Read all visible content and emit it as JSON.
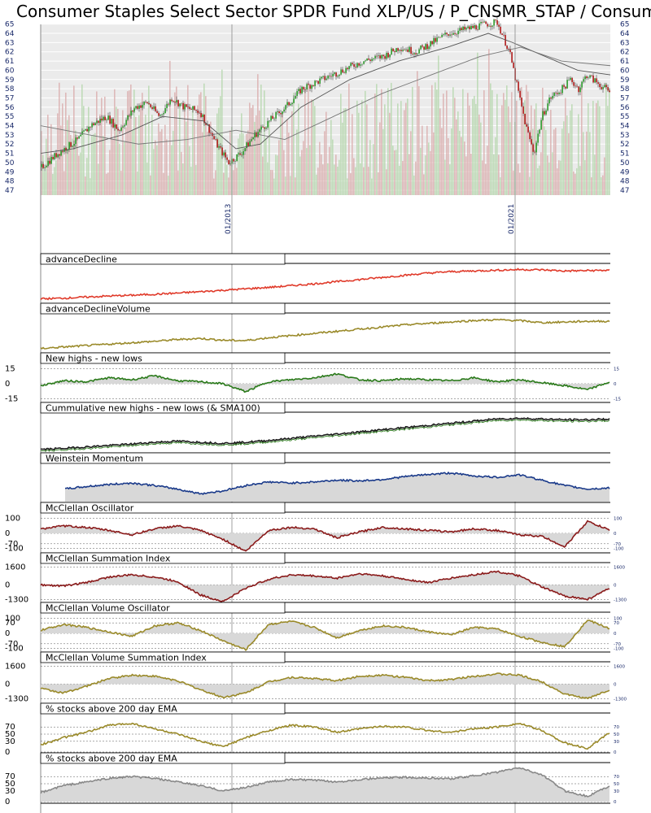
{
  "title": "Consumer Staples Select Sector SPDR Fund XLP/US / P_CNSMR_STAP / Consum",
  "chart_data": [
    {
      "type": "candlestick",
      "title": "Consumer Staples Select Sector SPDR Fund XLP/US / P_CNSMR_STAP / Consum",
      "ylim": [
        47,
        65.5
      ],
      "yticks": [
        47,
        48,
        49,
        50,
        51,
        52,
        53,
        54,
        55,
        56,
        57,
        58,
        59,
        60,
        61,
        62,
        63,
        64,
        65
      ],
      "x_labels": [
        "01/2013",
        "01/2021"
      ],
      "price_path": [
        [
          0,
          49.5
        ],
        [
          20,
          51
        ],
        [
          45,
          52.5
        ],
        [
          60,
          54
        ],
        [
          80,
          55
        ],
        [
          95,
          53.5
        ],
        [
          115,
          56
        ],
        [
          130,
          56.5
        ],
        [
          145,
          55
        ],
        [
          160,
          57
        ],
        [
          175,
          56
        ],
        [
          195,
          55.5
        ],
        [
          215,
          52
        ],
        [
          230,
          50
        ],
        [
          245,
          51
        ],
        [
          262,
          53
        ],
        [
          280,
          54.5
        ],
        [
          300,
          56
        ],
        [
          320,
          58
        ],
        [
          345,
          59
        ],
        [
          370,
          60
        ],
        [
          395,
          61
        ],
        [
          420,
          61.5
        ],
        [
          440,
          62.5
        ],
        [
          460,
          62
        ],
        [
          480,
          63
        ],
        [
          500,
          64
        ],
        [
          525,
          64.5
        ],
        [
          545,
          65
        ],
        [
          560,
          65.2
        ],
        [
          575,
          62
        ],
        [
          585,
          58
        ],
        [
          595,
          54
        ],
        [
          605,
          51
        ],
        [
          615,
          55
        ],
        [
          625,
          57
        ],
        [
          640,
          58
        ],
        [
          650,
          59
        ],
        [
          660,
          58
        ],
        [
          670,
          59.5
        ],
        [
          700,
          57.5
        ]
      ],
      "sma_short": [
        [
          0,
          51
        ],
        [
          40,
          51.5
        ],
        [
          100,
          53
        ],
        [
          150,
          55
        ],
        [
          200,
          54.5
        ],
        [
          240,
          51.5
        ],
        [
          270,
          52
        ],
        [
          320,
          56
        ],
        [
          380,
          59
        ],
        [
          440,
          61
        ],
        [
          500,
          62.5
        ],
        [
          550,
          64
        ],
        [
          580,
          63
        ],
        [
          620,
          61.5
        ],
        [
          660,
          60
        ],
        [
          700,
          59.5
        ]
      ],
      "sma_long": [
        [
          0,
          54
        ],
        [
          60,
          53
        ],
        [
          120,
          52
        ],
        [
          180,
          52.5
        ],
        [
          240,
          53.5
        ],
        [
          300,
          52.5
        ],
        [
          360,
          55
        ],
        [
          420,
          57.5
        ],
        [
          480,
          59.5
        ],
        [
          540,
          61.5
        ],
        [
          590,
          62.5
        ],
        [
          640,
          61
        ],
        [
          700,
          60.5
        ]
      ]
    },
    {
      "type": "line",
      "title": "advanceDecline",
      "color": "#e03a2a",
      "values": [
        10,
        12,
        15,
        18,
        20,
        23,
        26,
        30,
        34,
        38,
        42,
        47,
        52,
        58,
        64,
        70,
        76,
        82,
        86,
        88,
        90,
        92,
        91,
        88,
        89,
        90
      ],
      "ylim": [
        0,
        100
      ]
    },
    {
      "type": "line",
      "title": "advanceDeclineVolume",
      "color": "#9a8a2a",
      "values": [
        10,
        14,
        18,
        22,
        26,
        30,
        35,
        38,
        33,
        32,
        40,
        46,
        52,
        58,
        64,
        70,
        76,
        80,
        84,
        88,
        90,
        88,
        82,
        84,
        86,
        86
      ],
      "ylim": [
        0,
        100
      ]
    },
    {
      "type": "area",
      "title": "New highs - new lows",
      "color": "#2a7a1a",
      "yticks": [
        15,
        0,
        -15
      ],
      "values": [
        -2,
        3,
        2,
        6,
        4,
        8,
        3,
        2,
        0,
        -8,
        2,
        4,
        6,
        10,
        4,
        3,
        5,
        4,
        3,
        6,
        2,
        4,
        1,
        -2,
        -6,
        2
      ],
      "ylim": [
        -18,
        18
      ]
    },
    {
      "type": "line",
      "title": "Cummulative new highs - new lows (& SMA100)",
      "color": "#1a1a1a",
      "values": [
        5,
        8,
        12,
        16,
        20,
        25,
        28,
        25,
        22,
        25,
        30,
        36,
        42,
        48,
        54,
        60,
        66,
        72,
        78,
        84,
        90,
        92,
        90,
        88,
        88,
        90
      ],
      "ylim": [
        0,
        100
      ]
    },
    {
      "type": "area",
      "title": "Weinstein Momentum",
      "color": "#1a3a8a",
      "values": [
        30,
        35,
        42,
        48,
        52,
        45,
        35,
        22,
        30,
        45,
        55,
        52,
        55,
        60,
        58,
        62,
        70,
        76,
        80,
        72,
        68,
        75,
        60,
        45,
        35,
        38
      ],
      "ylim": [
        0,
        100
      ]
    },
    {
      "type": "area",
      "title": "McClellan Oscillator",
      "color": "#8a1a1a",
      "yticks": [
        100,
        0,
        -70,
        -100
      ],
      "values": [
        30,
        50,
        40,
        20,
        -10,
        30,
        50,
        20,
        -40,
        -120,
        20,
        40,
        30,
        -30,
        10,
        40,
        30,
        20,
        10,
        30,
        20,
        -10,
        -20,
        -90,
        80,
        20
      ],
      "ylim": [
        -120,
        120
      ]
    },
    {
      "type": "area",
      "title": "McClellan Summation Index",
      "color": "#8a1a1a",
      "yticks": [
        1600,
        0,
        -1300
      ],
      "values": [
        0,
        -100,
        200,
        700,
        900,
        700,
        300,
        -900,
        -1500,
        -300,
        500,
        900,
        800,
        600,
        1000,
        800,
        500,
        200,
        600,
        900,
        1200,
        800,
        -200,
        -1000,
        -1300,
        -300
      ],
      "ylim": [
        -1500,
        1700
      ]
    },
    {
      "type": "area",
      "title": "McClellan Volume Oscillator",
      "color": "#9a8a2a",
      "yticks": [
        100,
        70,
        0,
        -70,
        -100
      ],
      "values": [
        20,
        60,
        40,
        10,
        -20,
        50,
        70,
        20,
        -50,
        -110,
        60,
        80,
        40,
        -30,
        20,
        50,
        40,
        10,
        -10,
        40,
        30,
        -20,
        -60,
        -90,
        90,
        30
      ],
      "ylim": [
        -120,
        120
      ]
    },
    {
      "type": "area",
      "title": "McClellan Volume Summation Index",
      "color": "#9a8a2a",
      "yticks": [
        1600,
        0,
        -1300
      ],
      "values": [
        -400,
        -800,
        -200,
        500,
        800,
        700,
        300,
        -500,
        -1200,
        -800,
        200,
        600,
        500,
        300,
        700,
        800,
        600,
        300,
        400,
        700,
        900,
        800,
        200,
        -900,
        -1300,
        -500
      ],
      "ylim": [
        -1500,
        1700
      ]
    },
    {
      "type": "line",
      "title": "% stocks above 200 day EMA",
      "color": "#9a8a2a",
      "yticks": [
        70,
        50,
        30,
        0
      ],
      "values": [
        20,
        40,
        55,
        75,
        80,
        65,
        50,
        30,
        15,
        40,
        60,
        75,
        70,
        55,
        65,
        72,
        70,
        60,
        55,
        65,
        70,
        80,
        60,
        25,
        10,
        55
      ],
      "ylim": [
        0,
        100
      ]
    },
    {
      "type": "area",
      "title": "% stocks above 200 day EMA",
      "color": "#888888",
      "yticks": [
        70,
        50,
        30,
        0
      ],
      "values": [
        25,
        45,
        55,
        65,
        70,
        65,
        55,
        45,
        30,
        40,
        55,
        62,
        60,
        55,
        62,
        66,
        68,
        66,
        64,
        72,
        82,
        95,
        75,
        30,
        15,
        45
      ],
      "ylim": [
        0,
        100
      ]
    }
  ]
}
